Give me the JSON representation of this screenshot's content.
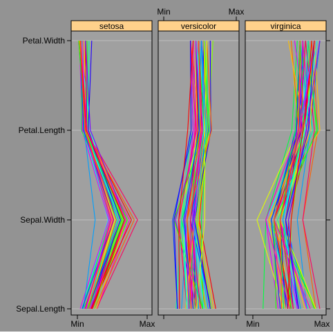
{
  "chart_data": {
    "type": "parallel-coordinates",
    "top_axis": {
      "min_label": "Min",
      "max_label": "Max"
    },
    "bottom_axis": {
      "min_label": "Min",
      "max_label": "Max"
    },
    "variables": [
      "Sepal.Length",
      "Sepal.Width",
      "Petal.Length",
      "Petal.Width"
    ],
    "panels": [
      {
        "name": "setosa",
        "lines": [
          [
            0.18,
            0.63,
            0.12,
            0.04
          ],
          [
            0.14,
            0.49,
            0.11,
            0.03
          ],
          [
            0.11,
            0.55,
            0.09,
            0.05
          ],
          [
            0.12,
            0.52,
            0.13,
            0.04
          ],
          [
            0.16,
            0.66,
            0.11,
            0.05
          ],
          [
            0.22,
            0.73,
            0.16,
            0.14
          ],
          [
            0.11,
            0.58,
            0.11,
            0.09
          ],
          [
            0.16,
            0.58,
            0.13,
            0.04
          ],
          [
            0.07,
            0.45,
            0.1,
            0.05
          ],
          [
            0.14,
            0.51,
            0.13,
            0.02
          ],
          [
            0.22,
            0.68,
            0.13,
            0.04
          ],
          [
            0.13,
            0.58,
            0.14,
            0.04
          ],
          [
            0.13,
            0.48,
            0.11,
            0.02
          ],
          [
            0.04,
            0.46,
            0.07,
            0.03
          ],
          [
            0.29,
            0.76,
            0.08,
            0.05
          ],
          [
            0.28,
            0.88,
            0.13,
            0.12
          ],
          [
            0.22,
            0.71,
            0.1,
            0.12
          ],
          [
            0.18,
            0.63,
            0.12,
            0.08
          ],
          [
            0.28,
            0.71,
            0.16,
            0.09
          ],
          [
            0.18,
            0.71,
            0.13,
            0.08
          ],
          [
            0.22,
            0.6,
            0.16,
            0.05
          ],
          [
            0.18,
            0.68,
            0.13,
            0.12
          ],
          [
            0.09,
            0.65,
            0.06,
            0.06
          ],
          [
            0.18,
            0.55,
            0.16,
            0.17
          ],
          [
            0.13,
            0.58,
            0.19,
            0.04
          ],
          [
            0.16,
            0.5,
            0.14,
            0.04
          ],
          [
            0.16,
            0.6,
            0.14,
            0.12
          ],
          [
            0.2,
            0.63,
            0.13,
            0.04
          ],
          [
            0.2,
            0.6,
            0.11,
            0.05
          ],
          [
            0.12,
            0.52,
            0.14,
            0.04
          ],
          [
            0.14,
            0.5,
            0.14,
            0.04
          ],
          [
            0.22,
            0.6,
            0.13,
            0.12
          ],
          [
            0.2,
            0.79,
            0.13,
            0.02
          ],
          [
            0.25,
            0.83,
            0.11,
            0.05
          ],
          [
            0.14,
            0.51,
            0.13,
            0.03
          ],
          [
            0.16,
            0.55,
            0.09,
            0.04
          ],
          [
            0.25,
            0.63,
            0.1,
            0.05
          ],
          [
            0.14,
            0.65,
            0.11,
            0.02
          ],
          [
            0.07,
            0.48,
            0.1,
            0.04
          ],
          [
            0.18,
            0.6,
            0.13,
            0.04
          ],
          [
            0.16,
            0.63,
            0.1,
            0.08
          ],
          [
            0.09,
            0.26,
            0.1,
            0.08
          ],
          [
            0.07,
            0.53,
            0.09,
            0.04
          ],
          [
            0.16,
            0.63,
            0.16,
            0.21
          ],
          [
            0.18,
            0.71,
            0.19,
            0.12
          ],
          [
            0.13,
            0.48,
            0.11,
            0.08
          ],
          [
            0.18,
            0.71,
            0.14,
            0.05
          ],
          [
            0.11,
            0.53,
            0.11,
            0.04
          ],
          [
            0.21,
            0.69,
            0.13,
            0.04
          ],
          [
            0.16,
            0.57,
            0.11,
            0.04
          ]
        ]
      },
      {
        "name": "versicolor",
        "lines": [
          [
            0.75,
            0.51,
            0.63,
            0.54
          ],
          [
            0.58,
            0.51,
            0.59,
            0.58
          ],
          [
            0.72,
            0.49,
            0.66,
            0.58
          ],
          [
            0.33,
            0.21,
            0.51,
            0.5
          ],
          [
            0.61,
            0.38,
            0.61,
            0.58
          ],
          [
            0.39,
            0.38,
            0.58,
            0.5
          ],
          [
            0.56,
            0.54,
            0.63,
            0.62
          ],
          [
            0.17,
            0.25,
            0.39,
            0.38
          ],
          [
            0.64,
            0.41,
            0.61,
            0.5
          ],
          [
            0.25,
            0.33,
            0.49,
            0.54
          ],
          [
            0.19,
            0.12,
            0.42,
            0.38
          ],
          [
            0.44,
            0.43,
            0.54,
            0.58
          ],
          [
            0.47,
            0.16,
            0.51,
            0.38
          ],
          [
            0.5,
            0.41,
            0.63,
            0.54
          ],
          [
            0.36,
            0.41,
            0.44,
            0.5
          ],
          [
            0.67,
            0.46,
            0.58,
            0.54
          ],
          [
            0.36,
            0.44,
            0.59,
            0.58
          ],
          [
            0.42,
            0.33,
            0.53,
            0.38
          ],
          [
            0.53,
            0.14,
            0.59,
            0.58
          ],
          [
            0.36,
            0.25,
            0.49,
            0.42
          ],
          [
            0.44,
            0.49,
            0.64,
            0.71
          ],
          [
            0.5,
            0.38,
            0.51,
            0.5
          ],
          [
            0.56,
            0.25,
            0.66,
            0.58
          ],
          [
            0.5,
            0.38,
            0.63,
            0.46
          ],
          [
            0.58,
            0.41,
            0.56,
            0.5
          ],
          [
            0.64,
            0.44,
            0.58,
            0.54
          ],
          [
            0.69,
            0.38,
            0.64,
            0.54
          ],
          [
            0.67,
            0.44,
            0.68,
            0.67
          ],
          [
            0.47,
            0.41,
            0.59,
            0.58
          ],
          [
            0.39,
            0.3,
            0.42,
            0.38
          ],
          [
            0.33,
            0.21,
            0.47,
            0.42
          ],
          [
            0.33,
            0.21,
            0.46,
            0.38
          ],
          [
            0.42,
            0.33,
            0.49,
            0.46
          ],
          [
            0.47,
            0.33,
            0.69,
            0.62
          ],
          [
            0.31,
            0.44,
            0.59,
            0.58
          ],
          [
            0.47,
            0.59,
            0.59,
            0.62
          ],
          [
            0.69,
            0.46,
            0.63,
            0.58
          ],
          [
            0.56,
            0.14,
            0.58,
            0.5
          ],
          [
            0.36,
            0.44,
            0.53,
            0.5
          ],
          [
            0.33,
            0.25,
            0.51,
            0.5
          ],
          [
            0.33,
            0.28,
            0.58,
            0.46
          ],
          [
            0.5,
            0.44,
            0.61,
            0.54
          ],
          [
            0.42,
            0.28,
            0.51,
            0.46
          ],
          [
            0.19,
            0.14,
            0.39,
            0.38
          ],
          [
            0.36,
            0.3,
            0.54,
            0.5
          ],
          [
            0.39,
            0.44,
            0.54,
            0.46
          ],
          [
            0.39,
            0.38,
            0.54,
            0.5
          ],
          [
            0.53,
            0.38,
            0.56,
            0.5
          ],
          [
            0.22,
            0.21,
            0.34,
            0.42
          ],
          [
            0.39,
            0.33,
            0.53,
            0.5
          ]
        ]
      },
      {
        "name": "virginica",
        "lines": [
          [
            0.56,
            0.54,
            0.85,
            1.0
          ],
          [
            0.42,
            0.29,
            0.69,
            0.75
          ],
          [
            0.78,
            0.42,
            0.83,
            0.83
          ],
          [
            0.56,
            0.38,
            0.78,
            0.71
          ],
          [
            0.61,
            0.42,
            0.81,
            0.88
          ],
          [
            0.92,
            0.42,
            0.95,
            0.83
          ],
          [
            0.17,
            0.21,
            0.59,
            0.67
          ],
          [
            0.83,
            0.38,
            0.9,
            0.71
          ],
          [
            0.67,
            0.21,
            0.81,
            0.71
          ],
          [
            0.81,
            0.67,
            0.86,
            1.0
          ],
          [
            0.61,
            0.5,
            0.69,
            0.79
          ],
          [
            0.58,
            0.29,
            0.73,
            0.75
          ],
          [
            0.69,
            0.42,
            0.76,
            0.83
          ],
          [
            0.39,
            0.21,
            0.68,
            0.79
          ],
          [
            0.42,
            0.33,
            0.69,
            0.96
          ],
          [
            0.58,
            0.5,
            0.73,
            0.92
          ],
          [
            0.61,
            0.42,
            0.76,
            0.71
          ],
          [
            0.94,
            0.75,
            0.97,
            0.88
          ],
          [
            0.94,
            0.25,
            1.0,
            0.92
          ],
          [
            0.47,
            0.08,
            0.68,
            0.58
          ],
          [
            0.72,
            0.5,
            0.8,
            0.92
          ],
          [
            0.36,
            0.33,
            0.66,
            0.79
          ],
          [
            0.94,
            0.33,
            0.97,
            0.79
          ],
          [
            0.56,
            0.29,
            0.66,
            0.71
          ],
          [
            0.67,
            0.54,
            0.8,
            0.83
          ],
          [
            0.81,
            0.5,
            0.85,
            0.71
          ],
          [
            0.53,
            0.33,
            0.64,
            0.71
          ],
          [
            0.5,
            0.42,
            0.66,
            0.71
          ],
          [
            0.58,
            0.33,
            0.78,
            0.83
          ],
          [
            0.81,
            0.42,
            0.81,
            0.63
          ],
          [
            0.86,
            0.33,
            0.86,
            0.75
          ],
          [
            1.0,
            0.75,
            0.92,
            0.79
          ],
          [
            0.58,
            0.33,
            0.78,
            0.88
          ],
          [
            0.56,
            0.33,
            0.69,
            0.58
          ],
          [
            0.5,
            0.25,
            0.78,
            0.54
          ],
          [
            0.94,
            0.42,
            0.86,
            0.92
          ],
          [
            0.56,
            0.58,
            0.78,
            0.96
          ],
          [
            0.58,
            0.46,
            0.76,
            0.71
          ],
          [
            0.47,
            0.42,
            0.64,
            0.71
          ],
          [
            0.72,
            0.46,
            0.75,
            0.83
          ],
          [
            0.67,
            0.46,
            0.78,
            0.96
          ],
          [
            0.72,
            0.46,
            0.69,
            0.92
          ],
          [
            0.42,
            0.29,
            0.69,
            0.75
          ],
          [
            0.69,
            0.5,
            0.83,
            0.92
          ],
          [
            0.67,
            0.54,
            0.8,
            1.0
          ],
          [
            0.67,
            0.42,
            0.71,
            0.92
          ],
          [
            0.56,
            0.21,
            0.68,
            0.75
          ],
          [
            0.61,
            0.42,
            0.71,
            0.79
          ],
          [
            0.53,
            0.58,
            0.75,
            0.92
          ],
          [
            0.44,
            0.42,
            0.69,
            0.71
          ]
        ]
      }
    ],
    "colors": [
      "#ff0000",
      "#ff6000",
      "#ffbf00",
      "#dfff00",
      "#80ff00",
      "#20ff00",
      "#00ff40",
      "#00ff9f",
      "#00ffff",
      "#009fff",
      "#0040ff",
      "#2000ff",
      "#8000ff",
      "#df00ff",
      "#ff00bf",
      "#ff0060"
    ],
    "panel_background": "#a0a0a0",
    "strip_background": "#ffd18b",
    "axis_color": "#000000",
    "gridline_color": "#c8c8c8",
    "grid": true
  }
}
